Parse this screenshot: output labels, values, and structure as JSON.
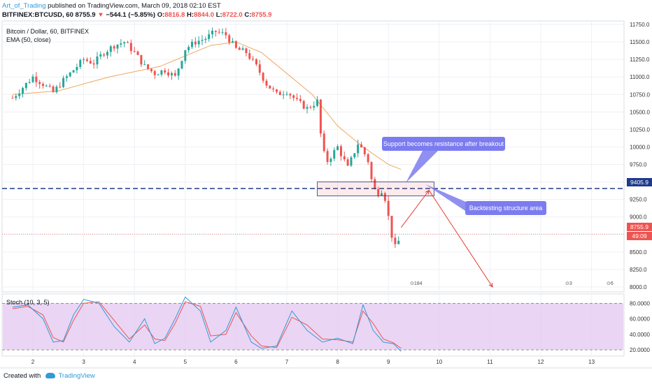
{
  "header": {
    "author": "Art_of_Trading",
    "published": "published on TradingView.com, March 09, 2018 02:10 EST",
    "symbol_line_prefix": "BITFINEX:BTCUSD, 60",
    "last_price": "8755.9",
    "change": "−544.1 (−5.85%)",
    "o_label": "O:",
    "o_value": "8816.8",
    "h_label": "H:",
    "h_value": "8844.0",
    "l_label": "L:",
    "l_value": "8722.0",
    "c_label": "C:",
    "c_value": "8755.9"
  },
  "legend": {
    "title": "Bitcoin / Dollar, 60, BITFINEX",
    "ema": "EMA (50, close)",
    "stoch": "Stoch (10, 3, 5)"
  },
  "annotations": {
    "callout_support": "Support becomes resistance after breakout",
    "callout_backtest": "Backtesting structure area"
  },
  "price_tags": {
    "level": "9405.9",
    "current": "8755.9",
    "timer": "49:09"
  },
  "events": {
    "flag1": "184",
    "flag2": "3",
    "flag3": "6"
  },
  "footer": {
    "created_with": "Created with",
    "brand": "TradingView"
  },
  "colors": {
    "up_candle": "#26a69a",
    "down_candle": "#ef5350",
    "ema_line": "#f0a860",
    "support_line": "#1f3a8a",
    "callout_bg": "#7c7cf0",
    "stoch_k": "#2e9bd8",
    "stoch_d": "#ef5350",
    "stoch_band": "#e3c7f0"
  },
  "chart_data": {
    "type": "candlestick",
    "x_ticks": [
      "2",
      "3",
      "4",
      "5",
      "6",
      "7",
      "8",
      "9",
      "10",
      "11",
      "12",
      "13"
    ],
    "y_ticks": [
      "11750.0",
      "11500.0",
      "11250.0",
      "11000.0",
      "10750.0",
      "10500.0",
      "10250.0",
      "10000.0",
      "9750.0",
      "9500.0",
      "9250.0",
      "9000.0",
      "8750.0",
      "8500.0",
      "8250.0",
      "8000.0"
    ],
    "ylim": [
      7930,
      11800
    ],
    "price_path": [
      [
        1.6,
        10700
      ],
      [
        1.8,
        10850
      ],
      [
        2.0,
        11000
      ],
      [
        2.2,
        10900
      ],
      [
        2.4,
        10780
      ],
      [
        2.6,
        10950
      ],
      [
        2.8,
        11100
      ],
      [
        3.0,
        11250
      ],
      [
        3.2,
        11200
      ],
      [
        3.4,
        11350
      ],
      [
        3.6,
        11450
      ],
      [
        3.8,
        11500
      ],
      [
        4.0,
        11350
      ],
      [
        4.2,
        11150
      ],
      [
        4.4,
        11050
      ],
      [
        4.6,
        11100
      ],
      [
        4.8,
        11000
      ],
      [
        5.0,
        11400
      ],
      [
        5.2,
        11500
      ],
      [
        5.4,
        11550
      ],
      [
        5.6,
        11650
      ],
      [
        5.8,
        11600
      ],
      [
        6.0,
        11400
      ],
      [
        6.2,
        11350
      ],
      [
        6.4,
        11150
      ],
      [
        6.6,
        10900
      ],
      [
        6.8,
        10750
      ],
      [
        7.0,
        10800
      ],
      [
        7.2,
        10650
      ],
      [
        7.4,
        10550
      ],
      [
        7.6,
        10650
      ],
      [
        7.7,
        9950
      ],
      [
        7.8,
        9800
      ],
      [
        8.0,
        10000
      ],
      [
        8.2,
        9700
      ],
      [
        8.4,
        10050
      ],
      [
        8.5,
        9950
      ],
      [
        8.6,
        9800
      ],
      [
        8.7,
        9400
      ],
      [
        8.8,
        9350
      ],
      [
        8.9,
        9400
      ],
      [
        9.0,
        9000
      ],
      [
        9.1,
        8600
      ],
      [
        9.15,
        8550
      ],
      [
        9.25,
        8755.9
      ]
    ],
    "ema_path": [
      [
        1.6,
        10750
      ],
      [
        2.5,
        10800
      ],
      [
        3.5,
        11000
      ],
      [
        4.5,
        11150
      ],
      [
        5.5,
        11450
      ],
      [
        6.0,
        11500
      ],
      [
        6.5,
        11350
      ],
      [
        7.0,
        11050
      ],
      [
        7.5,
        10750
      ],
      [
        8.0,
        10300
      ],
      [
        8.5,
        10000
      ],
      [
        9.0,
        9750
      ],
      [
        9.25,
        9680
      ]
    ],
    "support_level": 9405.9,
    "current_price": 8755.9,
    "zone": {
      "x": [
        7.6,
        9.9
      ],
      "y": [
        9300,
        9500
      ]
    },
    "projection": [
      [
        9.25,
        8850
      ],
      [
        9.8,
        9380
      ],
      [
        11.05,
        8000
      ]
    ],
    "stoch": {
      "ylim": [
        12,
        92
      ],
      "levels": [
        80,
        20
      ],
      "y_ticks": [
        "80.0000",
        "60.0000",
        "40.0000",
        "20.0000"
      ],
      "k": [
        [
          1.6,
          75
        ],
        [
          1.9,
          78
        ],
        [
          2.2,
          60
        ],
        [
          2.4,
          30
        ],
        [
          2.6,
          32
        ],
        [
          2.8,
          65
        ],
        [
          3.0,
          85
        ],
        [
          3.3,
          80
        ],
        [
          3.6,
          50
        ],
        [
          3.9,
          30
        ],
        [
          4.2,
          60
        ],
        [
          4.4,
          28
        ],
        [
          4.6,
          35
        ],
        [
          4.8,
          60
        ],
        [
          5.0,
          88
        ],
        [
          5.3,
          70
        ],
        [
          5.5,
          30
        ],
        [
          5.8,
          45
        ],
        [
          6.0,
          75
        ],
        [
          6.3,
          30
        ],
        [
          6.5,
          22
        ],
        [
          6.8,
          25
        ],
        [
          7.1,
          70
        ],
        [
          7.4,
          45
        ],
        [
          7.7,
          30
        ],
        [
          8.0,
          35
        ],
        [
          8.3,
          28
        ],
        [
          8.5,
          78
        ],
        [
          8.7,
          45
        ],
        [
          8.9,
          30
        ],
        [
          9.1,
          28
        ],
        [
          9.25,
          18
        ]
      ],
      "d": [
        [
          1.6,
          73
        ],
        [
          1.9,
          76
        ],
        [
          2.2,
          65
        ],
        [
          2.4,
          36
        ],
        [
          2.6,
          30
        ],
        [
          2.8,
          58
        ],
        [
          3.0,
          80
        ],
        [
          3.3,
          82
        ],
        [
          3.6,
          58
        ],
        [
          3.9,
          34
        ],
        [
          4.2,
          52
        ],
        [
          4.4,
          34
        ],
        [
          4.6,
          32
        ],
        [
          4.8,
          54
        ],
        [
          5.0,
          82
        ],
        [
          5.3,
          76
        ],
        [
          5.5,
          38
        ],
        [
          5.8,
          40
        ],
        [
          6.0,
          68
        ],
        [
          6.3,
          38
        ],
        [
          6.5,
          25
        ],
        [
          6.8,
          23
        ],
        [
          7.1,
          62
        ],
        [
          7.4,
          52
        ],
        [
          7.7,
          34
        ],
        [
          8.0,
          33
        ],
        [
          8.3,
          30
        ],
        [
          8.5,
          70
        ],
        [
          8.7,
          54
        ],
        [
          8.9,
          34
        ],
        [
          9.1,
          29
        ],
        [
          9.25,
          22
        ]
      ]
    }
  }
}
